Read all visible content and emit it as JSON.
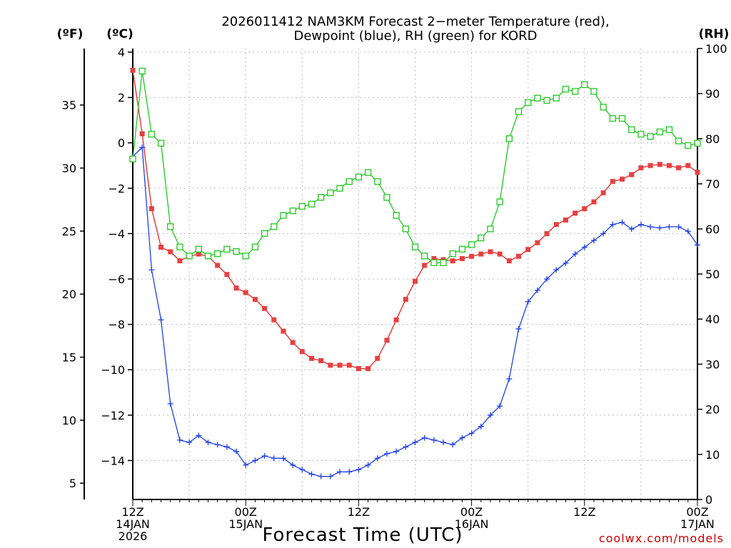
{
  "colors": {
    "temperature": "#e82424",
    "temperature_marker": "#e84040",
    "dewpoint": "#2040e8",
    "rh": "#20c820",
    "credit": "#d00000"
  },
  "units": {
    "fahrenheit": "(ºF)",
    "celsius": "(ºC)",
    "rh": "(RH)"
  },
  "credit": "coolwx.com/models",
  "chart_data": {
    "type": "line",
    "title": "2026011412 NAM3KM Forecast 2-meter Temperature (red), Dewpoint (blue), RH (green) for KORD",
    "title_lines": [
      "2026011412 NAM3KM Forecast 2−meter Temperature (red),",
      "Dewpoint (blue), RH (green) for KORD"
    ],
    "xlabel": "Forecast Time (UTC)",
    "x_unit": "forecast hour",
    "xlim": [
      0,
      60
    ],
    "x_ticks": [
      {
        "hour": 0,
        "lines": [
          "12Z",
          "14JAN",
          "2026"
        ]
      },
      {
        "hour": 12,
        "lines": [
          "00Z",
          "15JAN"
        ]
      },
      {
        "hour": 24,
        "lines": [
          "12Z"
        ]
      },
      {
        "hour": 36,
        "lines": [
          "00Z",
          "16JAN"
        ]
      },
      {
        "hour": 48,
        "lines": [
          "12Z"
        ]
      },
      {
        "hour": 60,
        "lines": [
          "00Z",
          "17JAN"
        ]
      }
    ],
    "ylim_celsius": [
      -15.5,
      4.2
    ],
    "y_ticks_celsius": [
      "4",
      "2",
      "0",
      "−2",
      "−4",
      "−6",
      "−8",
      "−10",
      "−12",
      "−14"
    ],
    "y_ticks_fahrenheit": [
      "35",
      "30",
      "25",
      "20",
      "15",
      "10",
      "5"
    ],
    "ylim_rh": [
      0,
      100
    ],
    "y_ticks_rh": [
      "100",
      "90",
      "80",
      "70",
      "60",
      "50",
      "40",
      "30",
      "20",
      "10",
      "0"
    ],
    "grid": true,
    "series": [
      {
        "name": "Temperature",
        "unit": "°C",
        "axis": "left",
        "color": "#e82424",
        "marker": "filled-square",
        "x": [
          0,
          1,
          2,
          3,
          4,
          5,
          6,
          7,
          8,
          9,
          10,
          11,
          12,
          13,
          14,
          15,
          16,
          17,
          18,
          19,
          20,
          21,
          22,
          23,
          24,
          25,
          26,
          27,
          28,
          29,
          30,
          31,
          32,
          33,
          34,
          35,
          36,
          37,
          38,
          39,
          40,
          41,
          42,
          43,
          44,
          45,
          46,
          47,
          48,
          49,
          50,
          51,
          52,
          53,
          54,
          55,
          56,
          57,
          58,
          59,
          60
        ],
        "values": [
          3.2,
          0.4,
          -2.9,
          -4.6,
          -4.8,
          -5.2,
          -5.0,
          -4.9,
          -5.0,
          -5.4,
          -5.8,
          -6.4,
          -6.6,
          -6.9,
          -7.3,
          -7.8,
          -8.3,
          -8.8,
          -9.2,
          -9.5,
          -9.6,
          -9.8,
          -9.8,
          -9.8,
          -9.95,
          -9.95,
          -9.5,
          -8.7,
          -7.8,
          -6.9,
          -6.1,
          -5.4,
          -5.1,
          -5.15,
          -5.2,
          -5.1,
          -5.0,
          -4.9,
          -4.8,
          -4.9,
          -5.2,
          -5.0,
          -4.7,
          -4.4,
          -4.0,
          -3.6,
          -3.4,
          -3.1,
          -2.9,
          -2.6,
          -2.2,
          -1.7,
          -1.6,
          -1.4,
          -1.1,
          -1.0,
          -0.95,
          -1.0,
          -1.1,
          -1.0,
          -1.3
        ]
      },
      {
        "name": "Dewpoint",
        "unit": "°C",
        "axis": "left",
        "color": "#2040e8",
        "marker": "plus",
        "x": [
          0,
          1,
          2,
          3,
          4,
          5,
          6,
          7,
          8,
          9,
          10,
          11,
          12,
          13,
          14,
          15,
          16,
          17,
          18,
          19,
          20,
          21,
          22,
          23,
          24,
          25,
          26,
          27,
          28,
          29,
          30,
          31,
          32,
          33,
          34,
          35,
          36,
          37,
          38,
          39,
          40,
          41,
          42,
          43,
          44,
          45,
          46,
          47,
          48,
          49,
          50,
          51,
          52,
          53,
          54,
          55,
          56,
          57,
          58,
          59,
          60
        ],
        "values": [
          -0.6,
          -0.2,
          -5.6,
          -7.8,
          -11.5,
          -13.1,
          -13.2,
          -12.9,
          -13.2,
          -13.3,
          -13.4,
          -13.6,
          -14.2,
          -14.0,
          -13.8,
          -13.9,
          -13.9,
          -14.2,
          -14.4,
          -14.6,
          -14.7,
          -14.7,
          -14.5,
          -14.5,
          -14.4,
          -14.2,
          -13.9,
          -13.7,
          -13.6,
          -13.4,
          -13.2,
          -13.0,
          -13.1,
          -13.2,
          -13.3,
          -13.0,
          -12.8,
          -12.5,
          -12.0,
          -11.6,
          -10.4,
          -8.2,
          -7.0,
          -6.5,
          -6.0,
          -5.6,
          -5.3,
          -4.9,
          -4.6,
          -4.3,
          -4.0,
          -3.6,
          -3.5,
          -3.8,
          -3.6,
          -3.7,
          -3.75,
          -3.7,
          -3.7,
          -3.9,
          -4.5
        ]
      },
      {
        "name": "RH",
        "unit": "%",
        "axis": "right",
        "color": "#20c820",
        "marker": "open-square",
        "x": [
          0,
          1,
          2,
          3,
          4,
          5,
          6,
          7,
          8,
          9,
          10,
          11,
          12,
          13,
          14,
          15,
          16,
          17,
          18,
          19,
          20,
          21,
          22,
          23,
          24,
          25,
          26,
          27,
          28,
          29,
          30,
          31,
          32,
          33,
          34,
          35,
          36,
          37,
          38,
          39,
          40,
          41,
          42,
          43,
          44,
          45,
          46,
          47,
          48,
          49,
          50,
          51,
          52,
          53,
          54,
          55,
          56,
          57,
          58,
          59,
          60
        ],
        "values": [
          75.5,
          95,
          81,
          79,
          60.5,
          56,
          54,
          55.5,
          54,
          54.5,
          55.5,
          55,
          54,
          56,
          59,
          60.5,
          63,
          64,
          65,
          65.5,
          67,
          68,
          69,
          70.5,
          71.5,
          72.5,
          70.5,
          67,
          63,
          60,
          56,
          54,
          52.5,
          52.5,
          54.5,
          55.5,
          56.5,
          58,
          60,
          66,
          80,
          86,
          88,
          89,
          88.5,
          89,
          91,
          90.5,
          92,
          90.5,
          87,
          84.5,
          84.5,
          82,
          81,
          80.5,
          81.5,
          82,
          79.5,
          78.5,
          79
        ]
      }
    ],
    "fahrenheit_axis": {
      "relation": "F = C*9/5 + 32",
      "ticks": [
        35,
        30,
        25,
        20,
        15,
        10,
        5
      ]
    }
  }
}
